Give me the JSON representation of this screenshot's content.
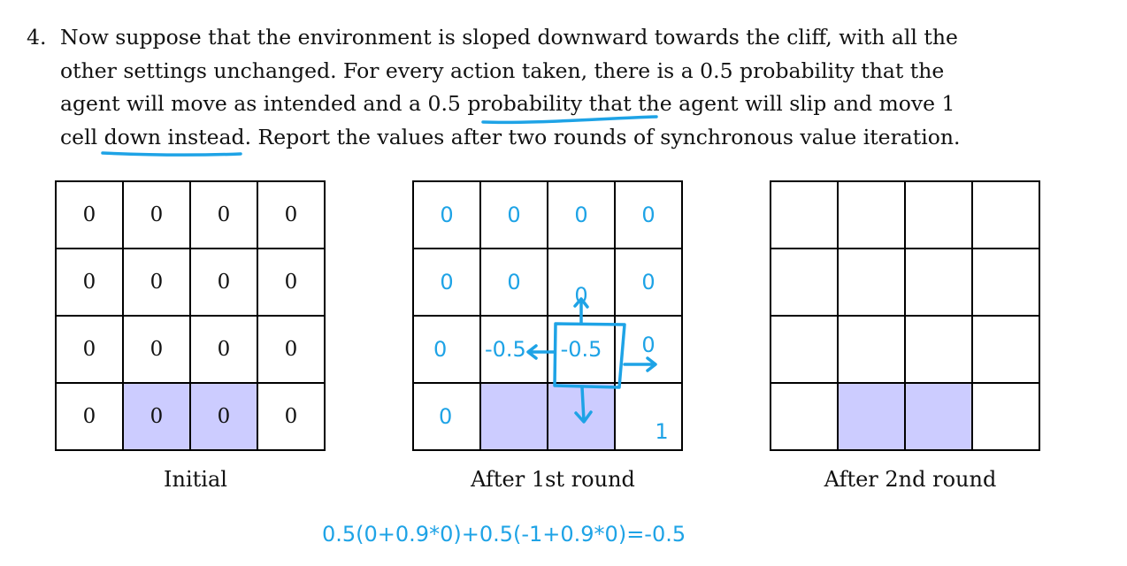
{
  "problem": {
    "number": "4.",
    "lines": [
      "Now suppose that the environment is sloped downward towards the cliff, with all the",
      "other settings unchanged.  For every action taken, there is a 0.5 probability that the",
      "agent will move as intended and a 0.5 probability that the agent will slip and move 1",
      "cell down instead. Report the values after two rounds of synchronous value iteration."
    ]
  },
  "grids": [
    {
      "caption": "Initial",
      "cells": [
        [
          "0",
          "0",
          "0",
          "0"
        ],
        [
          "0",
          "0",
          "0",
          "0"
        ],
        [
          "0",
          "0",
          "0",
          "0"
        ],
        [
          "0",
          "0",
          "0",
          "0"
        ]
      ]
    },
    {
      "caption": "After 1st round",
      "cells": [
        [
          "0",
          "0",
          "0",
          "0"
        ],
        [
          "0",
          "0",
          "0",
          "0"
        ],
        [
          "0",
          "-0.5",
          "-0.5",
          "0"
        ],
        [
          "0",
          "",
          "",
          "1"
        ]
      ]
    },
    {
      "caption": "After 2nd round",
      "cells": [
        [
          "",
          "",
          "",
          ""
        ],
        [
          "",
          "",
          "",
          ""
        ],
        [
          "",
          "",
          "",
          ""
        ],
        [
          "",
          "",
          "",
          ""
        ]
      ]
    }
  ],
  "cliff_cells": [
    [
      3,
      1
    ],
    [
      3,
      2
    ]
  ],
  "annotation": {
    "formula": "0.5(0+0.9*0)+0.5(-1+0.9*0)=-0.5",
    "ink_color": "#1ea3e6",
    "grid_fill_color": "#ccccff"
  }
}
